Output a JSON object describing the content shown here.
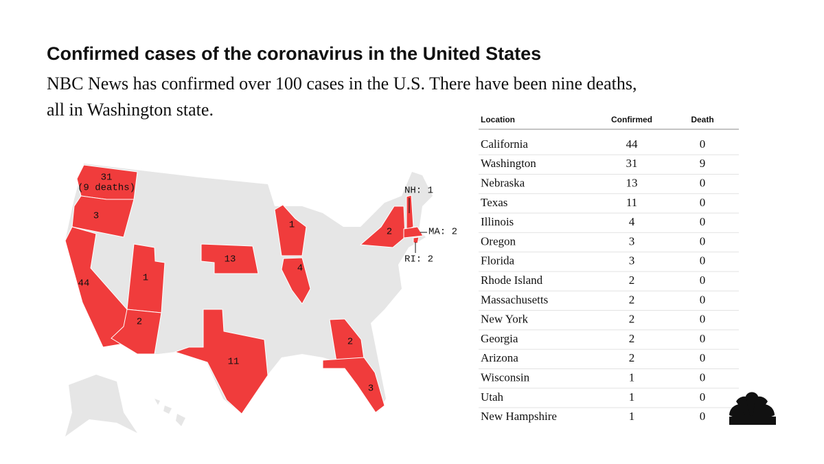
{
  "header": {
    "title": "Confirmed cases of the coronavirus in the United States",
    "subtitle_lines": [
      "NBC News has confirmed over 100 cases in the U.S. There have been nine deaths,",
      "all in Washington state."
    ]
  },
  "map": {
    "labels": [
      {
        "text": "31"
      },
      {
        "text": "(9 deaths)"
      },
      {
        "text": "3"
      },
      {
        "text": "44"
      },
      {
        "text": "1"
      },
      {
        "text": "2"
      },
      {
        "text": "13"
      },
      {
        "text": "1"
      },
      {
        "text": "4"
      },
      {
        "text": "11"
      },
      {
        "text": "2"
      },
      {
        "text": "3"
      },
      {
        "text": "2"
      },
      {
        "text": "NH: 1"
      },
      {
        "text": "MA: 2"
      },
      {
        "text": "RI: 2"
      }
    ]
  },
  "table": {
    "columns": [
      "Location",
      "Confirmed",
      "Death"
    ],
    "rows": [
      [
        "California",
        44,
        0
      ],
      [
        "Washington",
        31,
        9
      ],
      [
        "Nebraska",
        13,
        0
      ],
      [
        "Texas",
        11,
        0
      ],
      [
        "Illinois",
        4,
        0
      ],
      [
        "Oregon",
        3,
        0
      ],
      [
        "Florida",
        3,
        0
      ],
      [
        "Rhode Island",
        2,
        0
      ],
      [
        "Massachusetts",
        2,
        0
      ],
      [
        "New York",
        2,
        0
      ],
      [
        "Georgia",
        2,
        0
      ],
      [
        "Arizona",
        2,
        0
      ],
      [
        "Wisconsin",
        1,
        0
      ],
      [
        "Utah",
        1,
        0
      ],
      [
        "New Hampshire",
        1,
        0
      ]
    ]
  }
}
